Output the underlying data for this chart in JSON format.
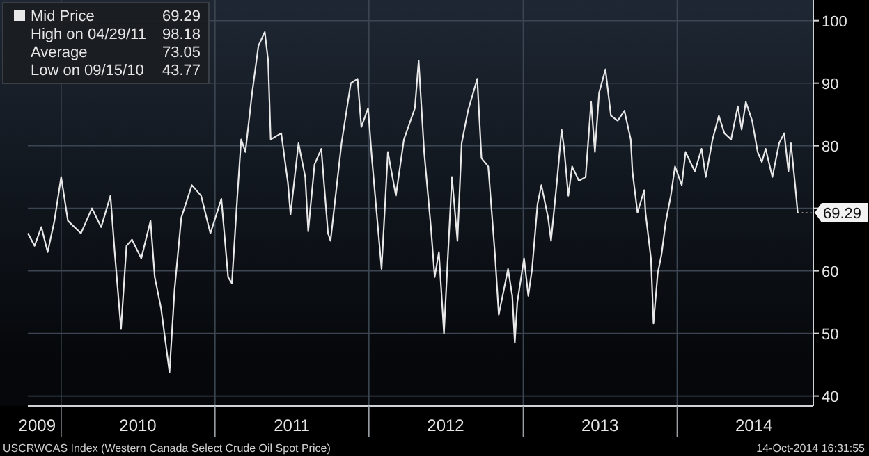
{
  "chart_data": {
    "type": "line",
    "x": [
      "2009-10-14",
      "2009-10-30",
      "2009-11-15",
      "2009-11-30",
      "2009-12-16",
      "2010-01-01",
      "2010-01-17",
      "2010-02-17",
      "2010-03-15",
      "2010-04-06",
      "2010-04-28",
      "2010-05-08",
      "2010-05-23",
      "2010-06-05",
      "2010-06-18",
      "2010-07-10",
      "2010-08-01",
      "2010-08-11",
      "2010-08-26",
      "2010-09-15",
      "2010-09-27",
      "2010-10-13",
      "2010-11-07",
      "2010-11-29",
      "2010-12-21",
      "2011-01-16",
      "2011-02-01",
      "2011-02-10",
      "2011-02-23",
      "2011-03-04",
      "2011-03-14",
      "2011-03-30",
      "2011-04-14",
      "2011-04-29",
      "2011-05-07",
      "2011-05-13",
      "2011-06-07",
      "2011-06-23",
      "2011-06-29",
      "2011-07-18",
      "2011-08-03",
      "2011-08-10",
      "2011-08-25",
      "2011-09-10",
      "2011-09-26",
      "2011-10-02",
      "2011-10-28",
      "2011-11-19",
      "2011-12-05",
      "2011-12-14",
      "2011-12-30",
      "2012-01-08",
      "2012-01-31",
      "2012-02-15",
      "2012-03-05",
      "2012-03-24",
      "2012-04-19",
      "2012-04-28",
      "2012-05-11",
      "2012-05-27",
      "2012-06-05",
      "2012-06-15",
      "2012-06-27",
      "2012-07-16",
      "2012-07-29",
      "2012-08-08",
      "2012-08-23",
      "2012-09-14",
      "2012-09-24",
      "2012-10-10",
      "2012-10-26",
      "2012-11-04",
      "2012-11-26",
      "2012-12-06",
      "2012-12-12",
      "2012-12-18",
      "2013-01-03",
      "2013-01-13",
      "2013-01-22",
      "2013-02-04",
      "2013-02-13",
      "2013-03-01",
      "2013-03-08",
      "2013-03-23",
      "2013-04-02",
      "2013-04-08",
      "2013-04-18",
      "2013-04-27",
      "2013-05-13",
      "2013-05-29",
      "2013-06-11",
      "2013-06-20",
      "2013-06-30",
      "2013-07-15",
      "2013-07-28",
      "2013-08-13",
      "2013-08-29",
      "2013-09-13",
      "2013-09-17",
      "2013-09-29",
      "2013-10-15",
      "2013-10-18",
      "2013-10-31",
      "2013-11-06",
      "2013-11-16",
      "2013-11-25",
      "2013-12-05",
      "2013-12-17",
      "2013-12-27",
      "2014-01-12",
      "2014-01-21",
      "2014-02-12",
      "2014-02-28",
      "2014-03-10",
      "2014-03-26",
      "2014-04-10",
      "2014-04-23",
      "2014-05-09",
      "2014-05-25",
      "2014-06-03",
      "2014-06-13",
      "2014-06-28",
      "2014-07-11",
      "2014-07-21",
      "2014-07-30",
      "2014-08-15",
      "2014-08-31",
      "2014-09-12",
      "2014-09-22",
      "2014-09-28",
      "2014-10-08",
      "2014-10-14"
    ],
    "series": [
      {
        "name": "Mid Price",
        "color": "#e8e8e8",
        "values": [
          66,
          64,
          67,
          63,
          68,
          75,
          68,
          66,
          70,
          67,
          72,
          63,
          50.7,
          64,
          65,
          62,
          68,
          59,
          54,
          43.77,
          57,
          68.5,
          73.7,
          72,
          66,
          71.5,
          59,
          58,
          72,
          81,
          79,
          88.5,
          96,
          98.18,
          93.6,
          81,
          82,
          74,
          69,
          80.4,
          75,
          66.3,
          77,
          79.5,
          66,
          64.8,
          80.4,
          90,
          90.7,
          83,
          86,
          78,
          60.3,
          79,
          72,
          81,
          86,
          93.6,
          79,
          67,
          59,
          63,
          50,
          75,
          64.8,
          80.4,
          85.6,
          90.7,
          78,
          76.7,
          62.6,
          53,
          60.3,
          56,
          48.5,
          55,
          62,
          56,
          60.3,
          70.7,
          73.7,
          68.5,
          64.8,
          75,
          82.6,
          79.5,
          72,
          76.7,
          74.4,
          75,
          87,
          79,
          88.5,
          92.2,
          84.8,
          84,
          85.6,
          81,
          75.9,
          69.3,
          72.9,
          69.3,
          62,
          51.6,
          59.6,
          62.6,
          67.8,
          72,
          76.7,
          73.7,
          79,
          75.9,
          79.5,
          75,
          81,
          84.8,
          82,
          81,
          86.3,
          82.6,
          87,
          84,
          79,
          77.4,
          79.5,
          75,
          80.4,
          82,
          75.9,
          80.4,
          73.7,
          69.29
        ]
      }
    ],
    "xlim": [
      "2009-10-14",
      "2014-11-20"
    ],
    "xticks": [
      {
        "value": "2009-11-05",
        "label": "2009"
      },
      {
        "value": "2010-01-01",
        "label": null
      },
      {
        "value": "2010-07-02",
        "label": "2010"
      },
      {
        "value": "2011-01-01",
        "label": null
      },
      {
        "value": "2011-07-02",
        "label": "2011"
      },
      {
        "value": "2012-01-01",
        "label": null
      },
      {
        "value": "2012-07-01",
        "label": "2012"
      },
      {
        "value": "2013-01-01",
        "label": null
      },
      {
        "value": "2013-07-02",
        "label": "2013"
      },
      {
        "value": "2014-01-01",
        "label": null
      },
      {
        "value": "2014-07-02",
        "label": "2014"
      }
    ],
    "ylim": [
      38.4,
      103.3
    ],
    "yticks": [
      40,
      50,
      60,
      {
        "value": 70,
        "label": null
      },
      80,
      90,
      100
    ],
    "grid": true,
    "legend": "top left",
    "annotations": [
      "69.29",
      "High on 04/29/11 98.18",
      "Average 73.05",
      "Low on 09/15/10 43.77",
      {
        "text": "69.29",
        "x": "2014-10-14",
        "y": 69.29
      },
      "USCRWCAS Index (Western Canada Select Crude Oil Spot Price)",
      "14-Oct-2014 16:31:55"
    ]
  }
}
